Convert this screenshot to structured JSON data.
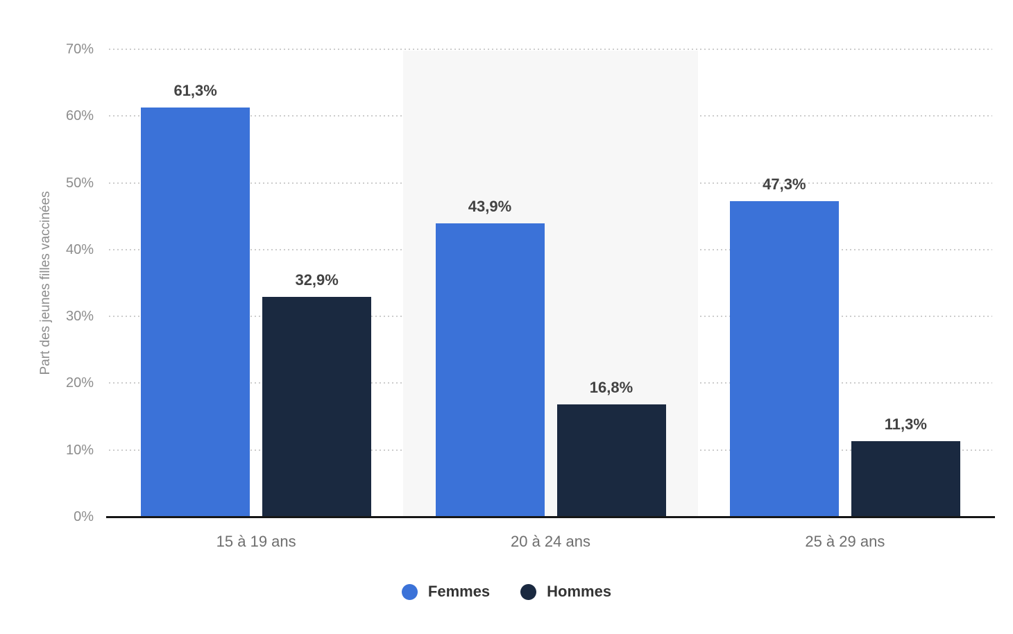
{
  "chart_data": {
    "type": "bar",
    "title": "",
    "ylabel": "Part des jeunes filles vaccinées",
    "xlabel": "",
    "categories": [
      "15 à 19 ans",
      "20 à 24 ans",
      "25 à 29 ans"
    ],
    "series": [
      {
        "name": "Femmes",
        "color": "#3b72d8",
        "values": [
          61.3,
          43.9,
          47.3
        ],
        "labels": [
          "61,3%",
          "43,9%",
          "47,3%"
        ]
      },
      {
        "name": "Hommes",
        "color": "#1a2940",
        "values": [
          32.9,
          16.8,
          11.3
        ],
        "labels": [
          "32,9%",
          "16,8%",
          "11,3%"
        ]
      }
    ],
    "ylim": [
      0,
      70
    ],
    "yticks": [
      "0%",
      "10%",
      "20%",
      "30%",
      "40%",
      "50%",
      "60%",
      "70%"
    ],
    "grid": "horizontal-dotted",
    "legend_position": "bottom",
    "highlighted_group_index": 1
  },
  "colors": {
    "background": "#ffffff",
    "gridline": "#cccccc",
    "axis_line": "#161616",
    "tick_text": "#8c8c8c",
    "category_text": "#6e6e6e",
    "value_text": "#424242",
    "legend_text": "#333333",
    "highlight_band": "#f7f7f7"
  }
}
